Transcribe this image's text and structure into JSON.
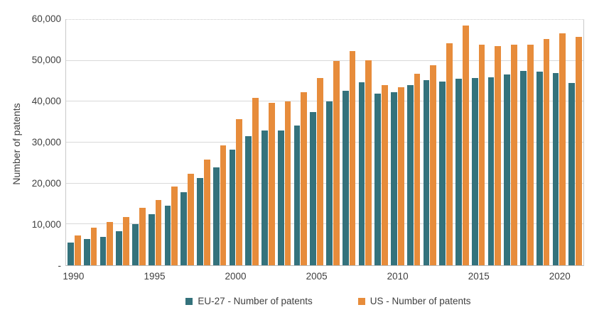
{
  "colors": {
    "eu_teal": "#34727C",
    "us_orange": "#E78C3B",
    "axis_text": "#404040",
    "gridline": "#D9D9D9",
    "axis_line": "#BFBFBF"
  },
  "chart_data": {
    "type": "bar",
    "title": "",
    "xlabel": "",
    "ylabel": "Number of patents",
    "ylim": [
      0,
      60000
    ],
    "grid": true,
    "legend_position": "bottom",
    "y_tick_labels": [
      "-",
      "10,000",
      "20,000",
      "30,000",
      "40,000",
      "50,000",
      "60,000"
    ],
    "x_ticks": [
      {
        "label": "1990",
        "index": 0
      },
      {
        "label": "1995",
        "index": 5
      },
      {
        "label": "2000",
        "index": 10
      },
      {
        "label": "2005",
        "index": 15
      },
      {
        "label": "2010",
        "index": 20
      },
      {
        "label": "2015",
        "index": 25
      },
      {
        "label": "2020",
        "index": 30
      }
    ],
    "categories": [
      1990,
      1991,
      1992,
      1993,
      1994,
      1995,
      1996,
      1997,
      1998,
      1999,
      2000,
      2001,
      2002,
      2003,
      2004,
      2005,
      2006,
      2007,
      2008,
      2009,
      2010,
      2011,
      2012,
      2013,
      2014,
      2015,
      2016,
      2017,
      2018,
      2019,
      2020,
      2021
    ],
    "series": [
      {
        "name": "EU-27 - Number of patents",
        "color": "#34727C",
        "values": [
          5500,
          6400,
          6900,
          8400,
          10000,
          12500,
          14600,
          17900,
          21300,
          24000,
          28300,
          31500,
          33000,
          33000,
          34100,
          37400,
          40000,
          42700,
          44800,
          41900,
          42400,
          44100,
          45300,
          44900,
          45600,
          45700,
          46000,
          46600,
          47500,
          47300,
          47000,
          44500
        ]
      },
      {
        "name": "US - Number of patents",
        "color": "#E78C3B",
        "values": [
          7200,
          9200,
          10500,
          11800,
          14000,
          15900,
          19300,
          22400,
          25900,
          29300,
          35700,
          41000,
          39700,
          40100,
          42400,
          45700,
          49900,
          52300,
          50100,
          44100,
          43500,
          46900,
          48900,
          54300,
          58600,
          54000,
          53600,
          54000,
          53900,
          55400,
          56700,
          55800
        ]
      }
    ]
  }
}
